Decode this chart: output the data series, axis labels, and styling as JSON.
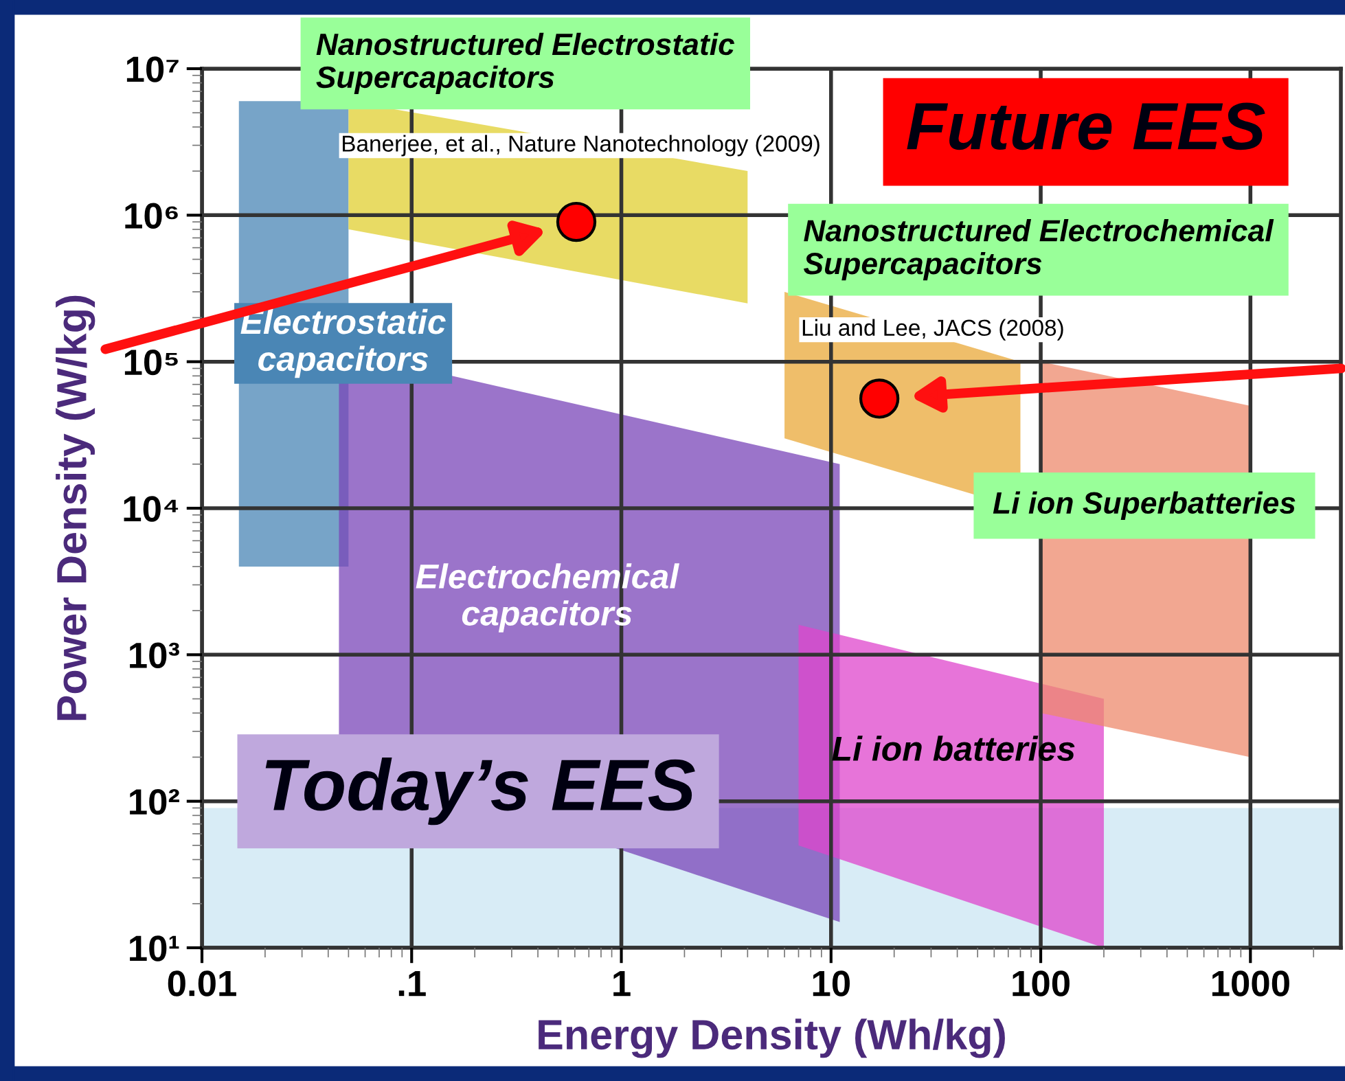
{
  "chart_data": {
    "type": "scatter",
    "xlabel": "Energy Density (Wh/kg)",
    "ylabel": "Power Density (W/kg)",
    "log": "xy",
    "xlim": [
      0.01,
      2700
    ],
    "ylim": [
      10,
      10000000
    ],
    "xticks": [
      0.01,
      {
        "value": 0.1,
        "label": ".1"
      },
      1,
      10,
      100,
      1000
    ],
    "yticks": [
      {
        "value": 10,
        "label": "10¹"
      },
      {
        "value": 100,
        "label": "10²"
      },
      {
        "value": 1000,
        "label": "10³"
      },
      {
        "value": 10000,
        "label": "10⁴"
      },
      {
        "value": 100000,
        "label": "10⁵"
      },
      {
        "value": 1000000,
        "label": "10⁶"
      },
      {
        "value": 10000000,
        "label": "10⁷"
      }
    ],
    "grid": true,
    "marker": "circle",
    "series": [
      {
        "color": "#ff0000",
        "x": [
          0.61,
          17
        ],
        "values": [
          900000,
          56000
        ]
      }
    ],
    "annotations": [
      "Nanostructured Electrostatic\nSupercapacitors",
      "Banerjee, et al., Nature Nanotechnology (2009)",
      "Future EES",
      "Nanostructured Electrochemical\nSupercapacitors",
      "Liu and Lee, JACS (2008)",
      "Li ion Superbatteries",
      "Electrostatic\ncapacitors",
      "Electrochemical\ncapacitors",
      "Today’s EES",
      "Li ion batteries"
    ]
  }
}
